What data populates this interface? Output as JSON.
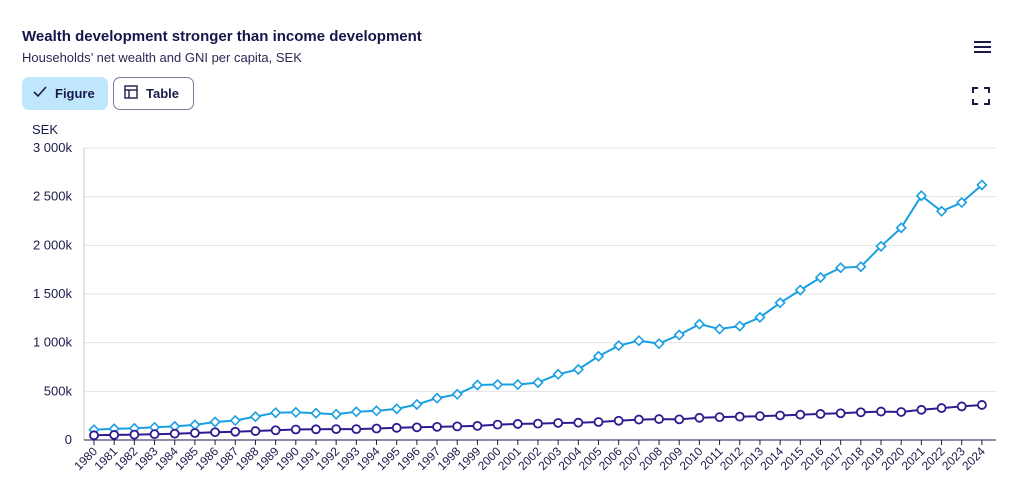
{
  "header": {
    "title": "Wealth development stronger than income development",
    "subtitle": "Households’ net wealth and GNI per capita, SEK"
  },
  "tabs": [
    {
      "label": "Figure",
      "icon": "check-icon",
      "active": true
    },
    {
      "label": "Table",
      "icon": "table-icon",
      "active": false
    }
  ],
  "colors": {
    "accent": "#bfe6fb",
    "wealth_series": "#1a9fe0",
    "gni_series": "#2d1b8f",
    "gridline": "#e3e3ea"
  },
  "chart_data": {
    "type": "line",
    "ylabel": "SEK",
    "ylim": [
      0,
      3000000
    ],
    "yticks": [
      0,
      500000,
      1000000,
      1500000,
      2000000,
      2500000,
      3000000
    ],
    "ytick_labels": [
      "0",
      "500k",
      "1 000k",
      "1 500k",
      "2 000k",
      "2 500k",
      "3 000k"
    ],
    "grid": true,
    "x": [
      "1980",
      "1981",
      "1982",
      "1983",
      "1984",
      "1985",
      "1986",
      "1987",
      "1988",
      "1989",
      "1990",
      "1991",
      "1992",
      "1993",
      "1994",
      "1995",
      "1996",
      "1997",
      "1998",
      "1999",
      "2000",
      "2001",
      "2002",
      "2003",
      "2004",
      "2005",
      "2006",
      "2007",
      "2008",
      "2009",
      "2010",
      "2011",
      "2012",
      "2013",
      "2014",
      "2015",
      "2016",
      "2017",
      "2018",
      "2019",
      "2020",
      "2021",
      "2022",
      "2023",
      "2024"
    ],
    "series": [
      {
        "marker": "diamond",
        "values": [
          105000,
          115000,
          120000,
          130000,
          140000,
          155000,
          185000,
          200000,
          240000,
          280000,
          285000,
          275000,
          265000,
          290000,
          300000,
          320000,
          365000,
          430000,
          470000,
          565000,
          570000,
          570000,
          590000,
          675000,
          725000,
          860000,
          970000,
          1020000,
          990000,
          1080000,
          1190000,
          1140000,
          1170000,
          1260000,
          1410000,
          1540000,
          1670000,
          1770000,
          1780000,
          1990000,
          2180000,
          2510000,
          2350000,
          2440000,
          2620000
        ]
      },
      {
        "marker": "circle",
        "values": [
          48000,
          52000,
          55000,
          60000,
          65000,
          72000,
          80000,
          85000,
          92000,
          100000,
          108000,
          110000,
          112000,
          112000,
          118000,
          125000,
          130000,
          135000,
          140000,
          145000,
          158000,
          165000,
          168000,
          175000,
          178000,
          185000,
          198000,
          210000,
          215000,
          212000,
          228000,
          235000,
          240000,
          245000,
          252000,
          260000,
          268000,
          275000,
          285000,
          292000,
          288000,
          310000,
          328000,
          345000,
          360000
        ]
      }
    ]
  }
}
